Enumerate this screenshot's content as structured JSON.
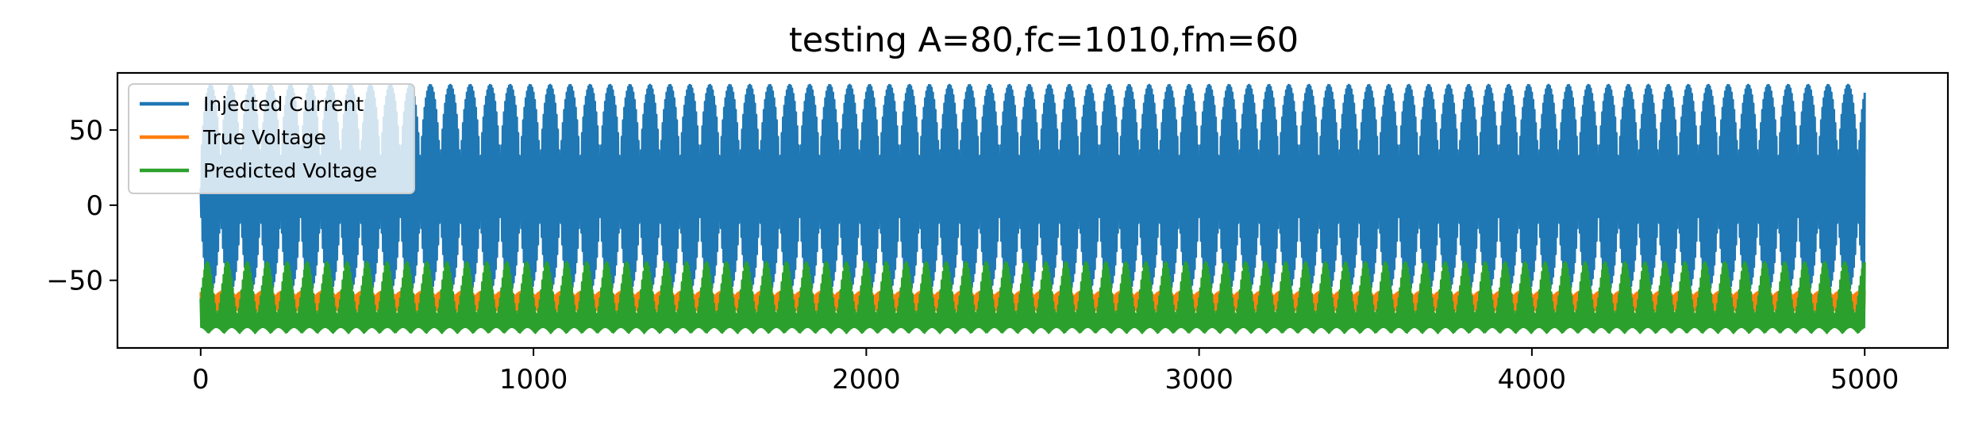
{
  "chart_data": {
    "type": "line",
    "title": "testing A=80,fc=1010,fm=60",
    "xlabel": "",
    "ylabel": "",
    "xlim": [
      -250,
      5250
    ],
    "ylim": [
      -95,
      88
    ],
    "x_ticks": [
      0,
      1000,
      2000,
      3000,
      4000,
      5000
    ],
    "x_tick_labels": [
      "0",
      "1000",
      "2000",
      "3000",
      "4000",
      "5000"
    ],
    "y_ticks": [
      -50,
      0,
      50
    ],
    "y_tick_labels": [
      "−50",
      "0",
      "50"
    ],
    "grid": false,
    "legend_position": "upper-left",
    "x": {
      "start": 0,
      "end": 5000
    },
    "series": [
      {
        "name": "Injected Current",
        "color": "#1f77b4",
        "min": -57,
        "max": 80
      },
      {
        "name": "True Voltage",
        "color": "#ff7f0e",
        "min": -72,
        "max": -57
      },
      {
        "name": "Predicted Voltage",
        "color": "#2ca02c",
        "min": -85,
        "max": -38
      }
    ]
  }
}
